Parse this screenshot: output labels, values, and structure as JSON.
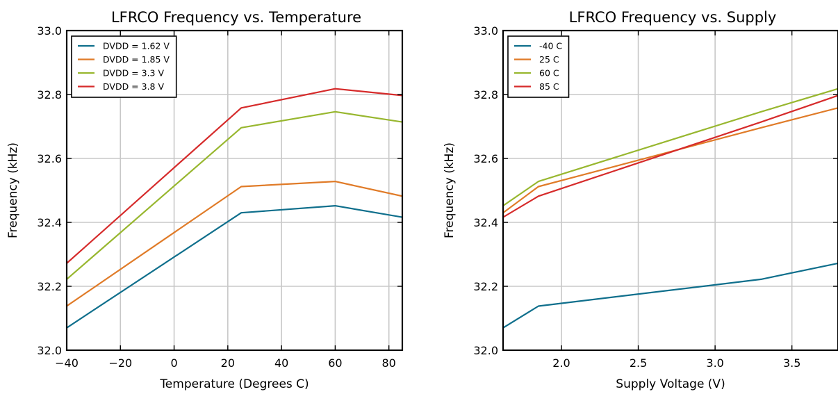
{
  "chart_data": [
    {
      "type": "line",
      "title": "LFRCO Frequency vs. Temperature",
      "xlabel": "Temperature (Degrees C)",
      "ylabel": "Frequency (kHz)",
      "xlim": [
        -40,
        85
      ],
      "ylim": [
        32.0,
        33.0
      ],
      "xticks": [
        -40,
        -20,
        0,
        20,
        40,
        60,
        80
      ],
      "xtick_labels": [
        "−40",
        "−20",
        "0",
        "20",
        "40",
        "60",
        "80"
      ],
      "yticks": [
        32.0,
        32.2,
        32.4,
        32.6,
        32.8,
        33.0
      ],
      "ytick_labels": [
        "32.0",
        "32.2",
        "32.4",
        "32.6",
        "32.8",
        "33.0"
      ],
      "grid": true,
      "legend_position": "top-left",
      "x": [
        -40,
        25,
        60,
        85
      ],
      "series": [
        {
          "name": "DVDD = 1.62 V",
          "color": "#0f6f8c",
          "values": [
            32.07,
            32.43,
            32.452,
            32.416
          ]
        },
        {
          "name": "DVDD = 1.85 V",
          "color": "#e07b28",
          "values": [
            32.138,
            32.512,
            32.528,
            32.482
          ]
        },
        {
          "name": "DVDD = 3.3 V",
          "color": "#98b72f",
          "values": [
            32.222,
            32.696,
            32.746,
            32.714
          ]
        },
        {
          "name": "DVDD = 3.8 V",
          "color": "#d62b2b",
          "values": [
            32.272,
            32.758,
            32.818,
            32.797
          ]
        }
      ]
    },
    {
      "type": "line",
      "title": "LFRCO Frequency vs. Supply",
      "xlabel": "Supply Voltage (V)",
      "ylabel": "Frequency (kHz)",
      "xlim": [
        1.62,
        3.8
      ],
      "ylim": [
        32.0,
        33.0
      ],
      "xticks": [
        2.0,
        2.5,
        3.0,
        3.5
      ],
      "xtick_labels": [
        "2.0",
        "2.5",
        "3.0",
        "3.5"
      ],
      "yticks": [
        32.0,
        32.2,
        32.4,
        32.6,
        32.8,
        33.0
      ],
      "ytick_labels": [
        "32.0",
        "32.2",
        "32.4",
        "32.6",
        "32.8",
        "33.0"
      ],
      "grid": true,
      "legend_position": "top-left",
      "x": [
        1.62,
        1.85,
        3.3,
        3.8
      ],
      "series": [
        {
          "name": "-40 C",
          "color": "#0f6f8c",
          "values": [
            32.07,
            32.138,
            32.222,
            32.272
          ]
        },
        {
          "name": "25 C",
          "color": "#e07b28",
          "values": [
            32.43,
            32.512,
            32.696,
            32.758
          ]
        },
        {
          "name": "60 C",
          "color": "#98b72f",
          "values": [
            32.452,
            32.528,
            32.746,
            32.818
          ]
        },
        {
          "name": "85 C",
          "color": "#d62b2b",
          "values": [
            32.416,
            32.482,
            32.714,
            32.797
          ]
        }
      ]
    }
  ]
}
